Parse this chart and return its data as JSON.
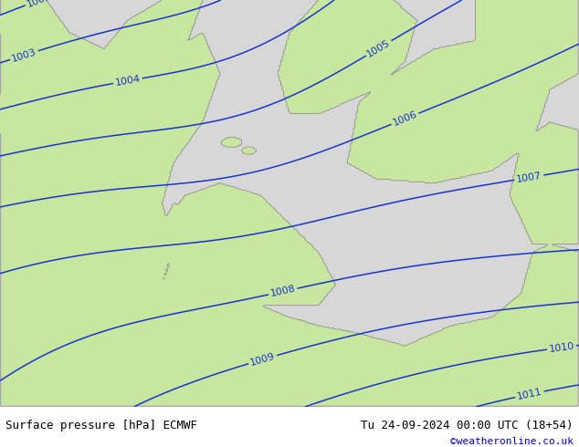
{
  "title_left": "Surface pressure [hPa] ECMWF",
  "title_right": "Tu 24-09-2024 00:00 UTC (18+54)",
  "copyright": "©weatheronline.co.uk",
  "bg_sea_color_rgb": [
    0.847,
    0.847,
    0.847
  ],
  "bg_land_color_rgb": [
    0.784,
    0.902,
    0.627
  ],
  "contour_color": "#1a35cc",
  "contour_linewidth": 1.1,
  "label_color": "#1a35cc",
  "label_fontsize": 8.0,
  "border_color": "#888888",
  "bottom_bar_color": "#ffffff",
  "bottom_text_color": "#000000",
  "copyright_color": "#0000cc",
  "figsize": [
    6.34,
    4.9
  ],
  "dpi": 100
}
